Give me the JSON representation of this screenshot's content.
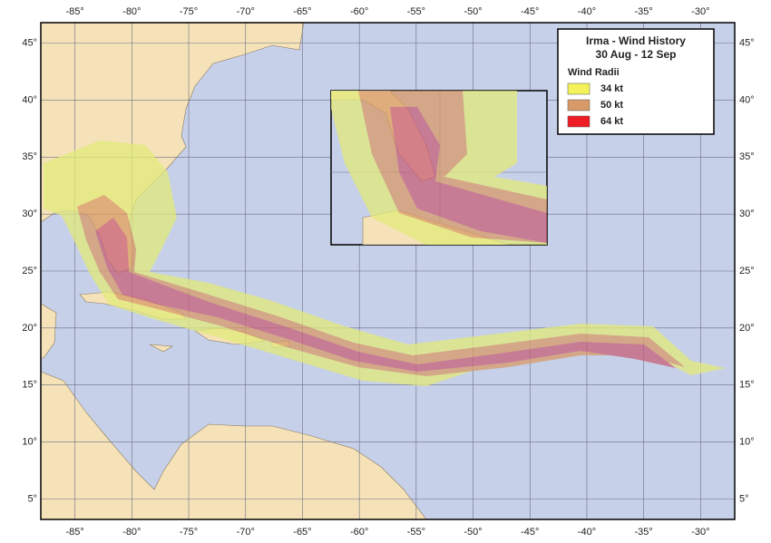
{
  "title": "Irma - Wind History",
  "subtitle": "30 Aug - 12 Sep",
  "legend": {
    "title": "Wind Radii",
    "items": [
      {
        "label": "34 kt",
        "color": "#f4f25a"
      },
      {
        "label": "50 kt",
        "color": "#d89a68"
      },
      {
        "label": "64 kt",
        "color": "#ee1c24"
      }
    ]
  },
  "xlim": [
    -88,
    -27
  ],
  "ylim": [
    3.2,
    46.8
  ],
  "lon_ticks": [
    {
      "value": -85,
      "label": "-85°"
    },
    {
      "value": -80,
      "label": "-80°"
    },
    {
      "value": -75,
      "label": "-75°"
    },
    {
      "value": -70,
      "label": "-70°"
    },
    {
      "value": -65,
      "label": "-65°"
    },
    {
      "value": -60,
      "label": "-60°"
    },
    {
      "value": -55,
      "label": "-55°"
    },
    {
      "value": -50,
      "label": "-50°"
    },
    {
      "value": -45,
      "label": "-45°"
    },
    {
      "value": -40,
      "label": "-40°"
    },
    {
      "value": -35,
      "label": "-35°"
    },
    {
      "value": -30,
      "label": "-30°"
    }
  ],
  "lat_ticks": [
    {
      "value": 45,
      "label": "45°"
    },
    {
      "value": 40,
      "label": "40°"
    },
    {
      "value": 35,
      "label": "35°"
    },
    {
      "value": 30,
      "label": "30°"
    },
    {
      "value": 25,
      "label": "25°"
    },
    {
      "value": 20,
      "label": "20°"
    },
    {
      "value": 15,
      "label": "15°"
    },
    {
      "value": 10,
      "label": "10°"
    },
    {
      "value": 5,
      "label": "5°"
    }
  ]
}
